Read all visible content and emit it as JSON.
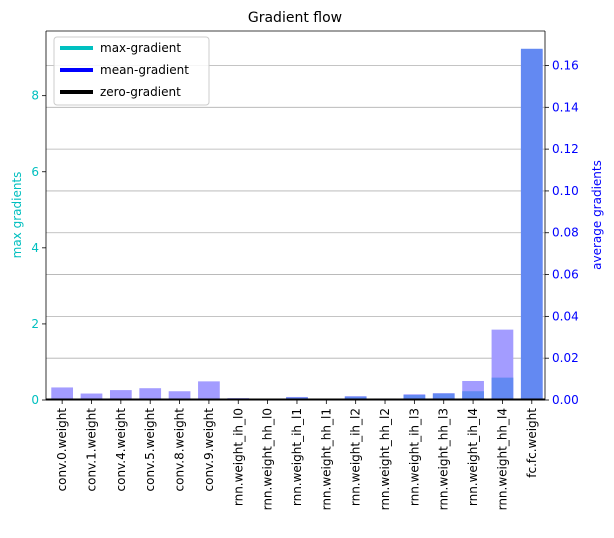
{
  "chart_data": {
    "type": "bar",
    "title": "Gradient flow",
    "xlabel": "",
    "ylabel_left": "max gradients",
    "ylabel_right": "average gradients",
    "ylim_left": [
      0,
      9.7
    ],
    "ylim_right": [
      0,
      0.1765
    ],
    "yticks_left": [
      0,
      2,
      4,
      6,
      8
    ],
    "yticks_right": [
      0.0,
      0.02,
      0.04,
      0.06,
      0.08,
      0.1,
      0.12,
      0.14,
      0.16
    ],
    "ytick_labels_left": [
      "0",
      "2",
      "4",
      "6",
      "8"
    ],
    "ytick_labels_right": [
      "0.00",
      "0.02",
      "0.04",
      "0.06",
      "0.08",
      "0.10",
      "0.12",
      "0.14",
      "0.16"
    ],
    "grid": "horizontal (right axis)",
    "categories": [
      "conv.0.weight",
      "conv.1.weight",
      "conv.4.weight",
      "conv.5.weight",
      "conv.8.weight",
      "conv.9.weight",
      "rnn.weight_ih_l0",
      "rnn.weight_hh_l0",
      "rnn.weight_ih_l1",
      "rnn.weight_hh_l1",
      "rnn.weight_ih_l2",
      "rnn.weight_hh_l2",
      "rnn.weight_ih_l3",
      "rnn.weight_hh_l3",
      "rnn.weight_ih_l4",
      "rnn.weight_hh_l4",
      "fc.fc.weight"
    ],
    "series": [
      {
        "name": "max-gradient",
        "axis": "left",
        "color": "#a39cff",
        "values": [
          0.33,
          0.17,
          0.26,
          0.31,
          0.23,
          0.49,
          0.05,
          0.01,
          0.08,
          0.01,
          0.1,
          0.04,
          0.15,
          0.18,
          0.5,
          1.85,
          9.2
        ]
      },
      {
        "name": "mean-gradient",
        "axis": "right",
        "color": "#6389f2",
        "values": [
          0.0,
          0.0,
          0.0,
          0.0,
          0.0,
          0.0,
          0.0004,
          0.0001,
          0.0012,
          0.0001,
          0.0016,
          0.0006,
          0.0024,
          0.0031,
          0.0042,
          0.0107,
          0.168
        ]
      }
    ],
    "legend": {
      "position": "top-left",
      "entries": [
        {
          "label": "max-gradient",
          "color": "#00c0c0"
        },
        {
          "label": "mean-gradient",
          "color": "#0000ff"
        },
        {
          "label": "zero-gradient",
          "color": "#000000"
        }
      ]
    },
    "colors": {
      "left_axis": "#00bfbf",
      "right_axis": "#0000ff",
      "grid": "#b0b0b0"
    }
  }
}
